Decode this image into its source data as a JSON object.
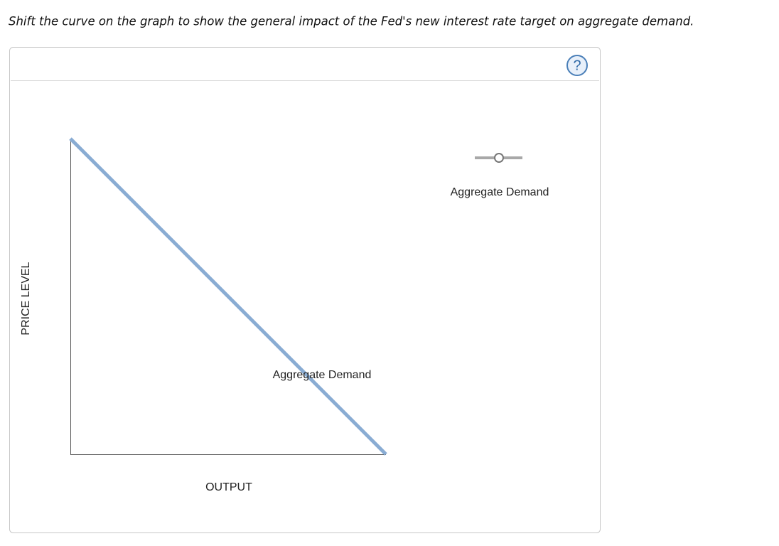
{
  "instruction": "Shift the curve on the graph to show the general impact of the Fed's new interest rate target on aggregate demand.",
  "help": "?",
  "graph": {
    "x_label": "OUTPUT",
    "y_label": "PRICE LEVEL",
    "curve_label": "Aggregate Demand"
  },
  "palette": {
    "tool_label": "Aggregate Demand"
  }
}
